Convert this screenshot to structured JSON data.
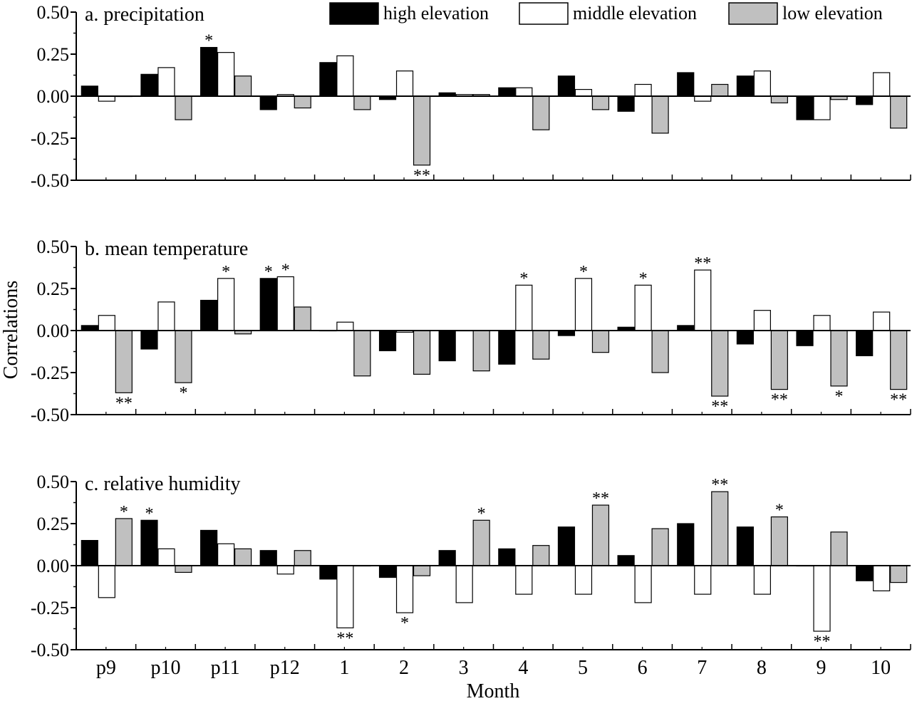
{
  "colors": {
    "high": "#000000",
    "middle": "#ffffff",
    "low": "#c0c0c0",
    "axis": "#000000"
  },
  "legend": {
    "high": "high elevation",
    "middle": "middle elevation",
    "low": "low elevation"
  },
  "ylabel": "Correlations",
  "xlabel": "Month",
  "chart_data": [
    {
      "type": "bar",
      "title": "a. precipitation",
      "categories": [
        "p9",
        "p10",
        "p11",
        "p12",
        "1",
        "2",
        "3",
        "4",
        "5",
        "6",
        "7",
        "8",
        "9",
        "10"
      ],
      "ylim": [
        -0.5,
        0.5
      ],
      "yticks": [
        "0.50",
        "0.25",
        "0.00",
        "-0.25",
        "-0.50"
      ],
      "series": [
        {
          "name": "high elevation",
          "key": "high",
          "values": [
            0.06,
            0.13,
            0.29,
            -0.08,
            0.2,
            -0.02,
            0.02,
            0.05,
            0.12,
            -0.09,
            0.14,
            0.12,
            -0.14,
            -0.05
          ],
          "significance": [
            "",
            "",
            "*",
            "",
            "",
            "",
            "",
            "",
            "",
            "",
            "",
            "",
            "",
            ""
          ]
        },
        {
          "name": "middle elevation",
          "key": "middle",
          "values": [
            -0.03,
            0.17,
            0.26,
            0.01,
            0.24,
            0.15,
            0.01,
            0.05,
            0.04,
            0.07,
            -0.03,
            0.15,
            -0.14,
            0.14
          ],
          "significance": [
            "",
            "",
            "",
            "",
            "",
            "",
            "",
            "",
            "",
            "",
            "",
            "",
            "",
            ""
          ]
        },
        {
          "name": "low elevation",
          "key": "low",
          "values": [
            0.0,
            -0.14,
            0.12,
            -0.07,
            -0.08,
            -0.41,
            0.01,
            -0.2,
            -0.08,
            -0.22,
            0.07,
            -0.04,
            -0.02,
            -0.19
          ],
          "significance": [
            "",
            "",
            "",
            "",
            "",
            "**",
            "",
            "",
            "",
            "",
            "",
            "",
            "",
            ""
          ]
        }
      ]
    },
    {
      "type": "bar",
      "title": "b. mean temperature",
      "categories": [
        "p9",
        "p10",
        "p11",
        "p12",
        "1",
        "2",
        "3",
        "4",
        "5",
        "6",
        "7",
        "8",
        "9",
        "10"
      ],
      "ylim": [
        -0.5,
        0.5
      ],
      "yticks": [
        "0.50",
        "0.25",
        "0.00",
        "-0.25",
        "-0.50"
      ],
      "series": [
        {
          "name": "high elevation",
          "key": "high",
          "values": [
            0.03,
            -0.11,
            0.18,
            0.31,
            0.0,
            -0.12,
            -0.18,
            -0.2,
            -0.03,
            0.02,
            0.03,
            -0.08,
            -0.09,
            -0.15
          ],
          "significance": [
            "",
            "",
            "",
            "*",
            "",
            "",
            "",
            "",
            "",
            "",
            "",
            "",
            "",
            ""
          ]
        },
        {
          "name": "middle elevation",
          "key": "middle",
          "values": [
            0.09,
            0.17,
            0.31,
            0.32,
            0.05,
            -0.01,
            0.0,
            0.27,
            0.31,
            0.27,
            0.36,
            0.12,
            0.09,
            0.11
          ],
          "significance": [
            "",
            "",
            "*",
            "*",
            "",
            "",
            "",
            "*",
            "*",
            "*",
            "**",
            "",
            "",
            ""
          ]
        },
        {
          "name": "low elevation",
          "key": "low",
          "values": [
            -0.37,
            -0.31,
            -0.02,
            0.14,
            -0.27,
            -0.26,
            -0.24,
            -0.17,
            -0.13,
            -0.25,
            -0.39,
            -0.35,
            -0.33,
            -0.35
          ],
          "significance": [
            "**",
            "*",
            "",
            "",
            "",
            "",
            "",
            "",
            "",
            "",
            "**",
            "**",
            "*",
            "**"
          ]
        }
      ]
    },
    {
      "type": "bar",
      "title": "c. relative humidity",
      "categories": [
        "p9",
        "p10",
        "p11",
        "p12",
        "1",
        "2",
        "3",
        "4",
        "5",
        "6",
        "7",
        "8",
        "9",
        "10"
      ],
      "ylim": [
        -0.5,
        0.5
      ],
      "yticks": [
        "0.50",
        "0.25",
        "0.00",
        "-0.25",
        "-0.50"
      ],
      "series": [
        {
          "name": "high elevation",
          "key": "high",
          "values": [
            0.15,
            0.27,
            0.21,
            0.09,
            -0.08,
            -0.07,
            0.09,
            0.1,
            0.23,
            0.06,
            0.25,
            0.23,
            0.0,
            -0.09
          ],
          "significance": [
            "",
            "*",
            "",
            "",
            "",
            "",
            "",
            "",
            "",
            "",
            "",
            "",
            "",
            ""
          ]
        },
        {
          "name": "middle elevation",
          "key": "middle",
          "values": [
            -0.19,
            0.1,
            0.13,
            -0.05,
            -0.37,
            -0.28,
            -0.22,
            -0.17,
            -0.17,
            -0.22,
            -0.17,
            -0.17,
            -0.39,
            -0.15
          ],
          "significance": [
            "",
            "",
            "",
            "",
            "**",
            "*",
            "",
            "",
            "",
            "",
            "",
            "",
            "**",
            ""
          ]
        },
        {
          "name": "low elevation",
          "key": "low",
          "values": [
            0.28,
            -0.04,
            0.1,
            0.09,
            0.0,
            -0.06,
            0.27,
            0.12,
            0.36,
            0.22,
            0.44,
            0.29,
            0.2,
            -0.1
          ],
          "significance": [
            "*",
            "",
            "",
            "",
            "",
            "",
            "*",
            "",
            "**",
            "",
            "**",
            "*",
            "",
            ""
          ]
        }
      ]
    }
  ]
}
